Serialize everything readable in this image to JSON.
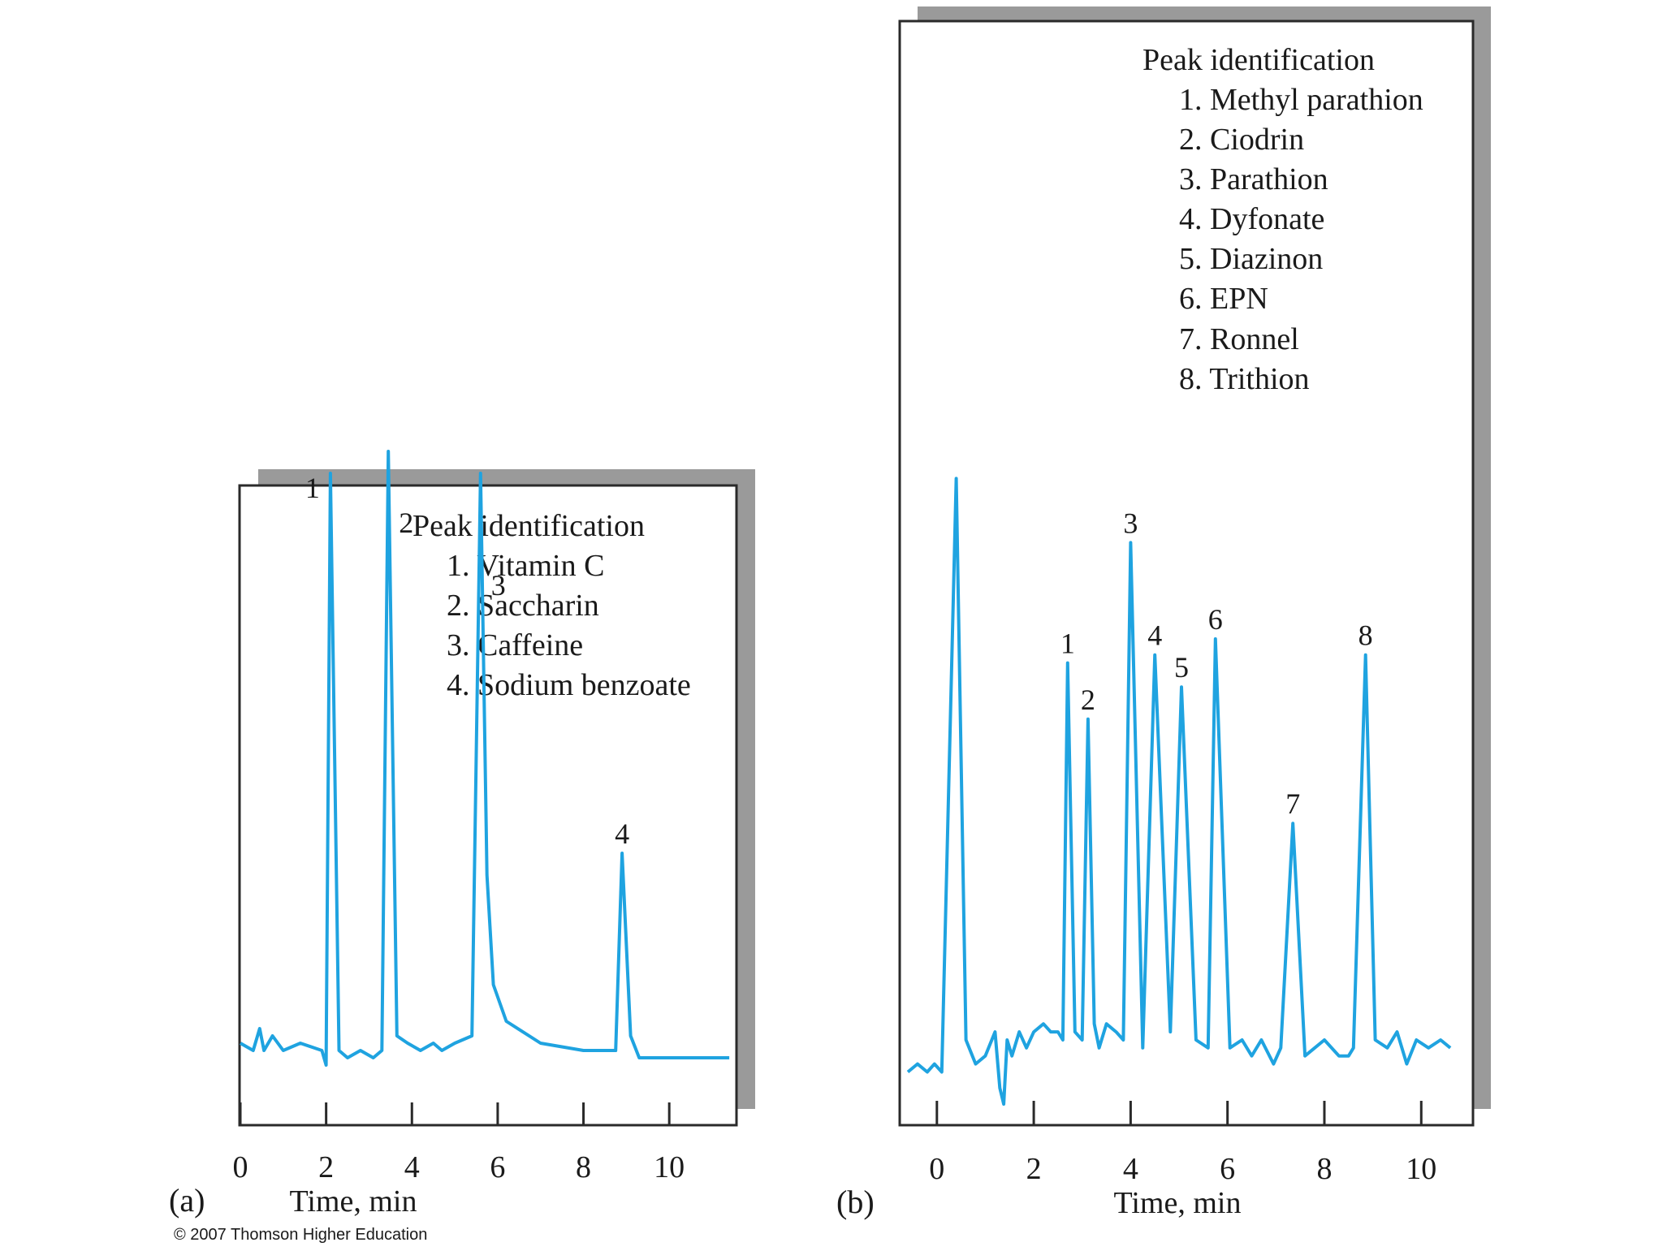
{
  "credit": "© 2007 Thomson Higher Education",
  "colors": {
    "trace": "#1fa3e0",
    "frame": "#2a2a2a",
    "shadow": "#9a9a9a"
  },
  "chart_data": [
    {
      "type": "line",
      "panel_label": "(a)",
      "xlabel": "Time, min",
      "xlim": [
        0,
        11
      ],
      "ticks": [
        0,
        2,
        4,
        6,
        8,
        10
      ],
      "legend": {
        "title": "Peak identification",
        "items": [
          "1. Vitamin C",
          "2. Saccharin",
          "3. Caffeine",
          "4. Sodium benzoate"
        ]
      },
      "peaks": [
        {
          "label": "1",
          "x": 2.1,
          "y": 0.85
        },
        {
          "label": "2",
          "x": 3.45,
          "y": 0.88
        },
        {
          "label": "3",
          "x": 5.6,
          "y": 0.85
        },
        {
          "label": "4",
          "x": 8.9,
          "y": 0.33
        }
      ],
      "trace": [
        [
          0,
          0.07
        ],
        [
          0.3,
          0.06
        ],
        [
          0.45,
          0.09
        ],
        [
          0.55,
          0.06
        ],
        [
          0.75,
          0.08
        ],
        [
          1.0,
          0.06
        ],
        [
          1.4,
          0.07
        ],
        [
          1.9,
          0.06
        ],
        [
          2.0,
          0.04
        ],
        [
          2.1,
          0.85
        ],
        [
          2.3,
          0.06
        ],
        [
          2.5,
          0.05
        ],
        [
          2.8,
          0.06
        ],
        [
          3.1,
          0.05
        ],
        [
          3.3,
          0.06
        ],
        [
          3.45,
          0.88
        ],
        [
          3.65,
          0.08
        ],
        [
          3.9,
          0.07
        ],
        [
          4.2,
          0.06
        ],
        [
          4.5,
          0.07
        ],
        [
          4.7,
          0.06
        ],
        [
          5.0,
          0.07
        ],
        [
          5.4,
          0.08
        ],
        [
          5.6,
          0.85
        ],
        [
          5.75,
          0.3
        ],
        [
          5.9,
          0.15
        ],
        [
          6.2,
          0.1
        ],
        [
          7.0,
          0.07
        ],
        [
          8.0,
          0.06
        ],
        [
          8.75,
          0.06
        ],
        [
          8.9,
          0.33
        ],
        [
          9.1,
          0.08
        ],
        [
          9.3,
          0.05
        ],
        [
          10.0,
          0.05
        ],
        [
          11.4,
          0.05
        ]
      ]
    },
    {
      "type": "line",
      "panel_label": "(b)",
      "xlabel": "Time, min",
      "xlim": [
        -0.6,
        10.8
      ],
      "ticks": [
        0,
        2,
        4,
        6,
        8,
        10
      ],
      "legend": {
        "title": "Peak identification",
        "items": [
          "1. Methyl parathion",
          "2. Ciodrin",
          "3. Parathion",
          "4. Dyfonate",
          "5. Diazinon",
          "6. EPN",
          "7. Ronnel",
          "8. Trithion"
        ]
      },
      "peaks": [
        {
          "label": "1",
          "x": 2.7,
          "y": 0.55
        },
        {
          "label": "2",
          "x": 3.12,
          "y": 0.48
        },
        {
          "label": "3",
          "x": 4.0,
          "y": 0.7
        },
        {
          "label": "4",
          "x": 4.5,
          "y": 0.56
        },
        {
          "label": "5",
          "x": 5.05,
          "y": 0.52
        },
        {
          "label": "6",
          "x": 5.75,
          "y": 0.58
        },
        {
          "label": "7",
          "x": 7.35,
          "y": 0.35
        },
        {
          "label": "8",
          "x": 8.85,
          "y": 0.56
        }
      ],
      "trace": [
        [
          -0.6,
          0.04
        ],
        [
          -0.4,
          0.05
        ],
        [
          -0.2,
          0.04
        ],
        [
          -0.05,
          0.05
        ],
        [
          0.1,
          0.04
        ],
        [
          0.4,
          0.78
        ],
        [
          0.6,
          0.08
        ],
        [
          0.8,
          0.05
        ],
        [
          1.0,
          0.06
        ],
        [
          1.2,
          0.09
        ],
        [
          1.3,
          0.02
        ],
        [
          1.38,
          0.0
        ],
        [
          1.45,
          0.08
        ],
        [
          1.55,
          0.06
        ],
        [
          1.7,
          0.09
        ],
        [
          1.85,
          0.07
        ],
        [
          2.0,
          0.09
        ],
        [
          2.2,
          0.1
        ],
        [
          2.35,
          0.09
        ],
        [
          2.5,
          0.09
        ],
        [
          2.6,
          0.08
        ],
        [
          2.7,
          0.55
        ],
        [
          2.85,
          0.09
        ],
        [
          3.0,
          0.08
        ],
        [
          3.12,
          0.48
        ],
        [
          3.25,
          0.1
        ],
        [
          3.35,
          0.07
        ],
        [
          3.5,
          0.1
        ],
        [
          3.7,
          0.09
        ],
        [
          3.85,
          0.08
        ],
        [
          4.0,
          0.7
        ],
        [
          4.25,
          0.07
        ],
        [
          4.5,
          0.56
        ],
        [
          4.82,
          0.09
        ],
        [
          5.05,
          0.52
        ],
        [
          5.35,
          0.08
        ],
        [
          5.6,
          0.07
        ],
        [
          5.75,
          0.58
        ],
        [
          6.05,
          0.07
        ],
        [
          6.3,
          0.08
        ],
        [
          6.5,
          0.06
        ],
        [
          6.7,
          0.08
        ],
        [
          6.95,
          0.05
        ],
        [
          7.1,
          0.07
        ],
        [
          7.35,
          0.35
        ],
        [
          7.6,
          0.06
        ],
        [
          7.8,
          0.07
        ],
        [
          8.0,
          0.08
        ],
        [
          8.3,
          0.06
        ],
        [
          8.5,
          0.06
        ],
        [
          8.6,
          0.07
        ],
        [
          8.85,
          0.56
        ],
        [
          9.05,
          0.08
        ],
        [
          9.3,
          0.07
        ],
        [
          9.5,
          0.09
        ],
        [
          9.7,
          0.05
        ],
        [
          9.9,
          0.08
        ],
        [
          10.15,
          0.07
        ],
        [
          10.4,
          0.08
        ],
        [
          10.6,
          0.07
        ]
      ]
    }
  ]
}
